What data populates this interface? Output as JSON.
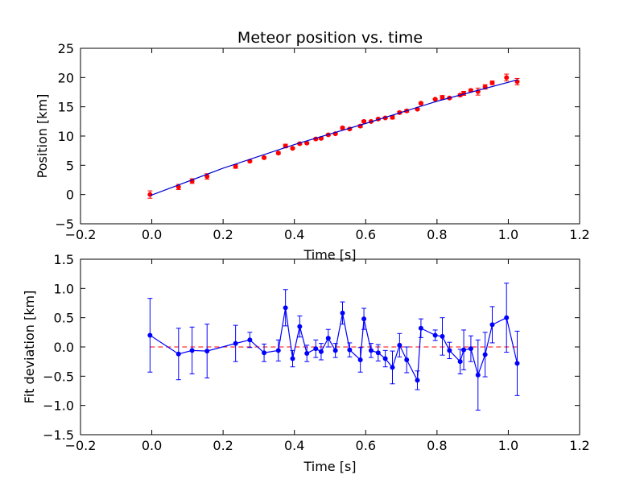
{
  "chart_data": [
    {
      "type": "scatter",
      "title": "Meteor position vs. time",
      "xlabel": "Time [s]",
      "ylabel": "Position [km]",
      "xlim": [
        -0.2,
        1.2
      ],
      "ylim": [
        -5,
        25
      ],
      "xticks": [
        "−0.2",
        "0.0",
        "0.2",
        "0.4",
        "0.6",
        "0.8",
        "1.0",
        "1.2"
      ],
      "yticks": [
        "−5",
        "0",
        "5",
        "10",
        "15",
        "20",
        "25"
      ],
      "grid": false,
      "series": [
        {
          "style": "points-with-errorbars",
          "color": "#ff0000",
          "x": [
            -0.005,
            0.075,
            0.113,
            0.155,
            0.235,
            0.275,
            0.315,
            0.355,
            0.375,
            0.395,
            0.415,
            0.435,
            0.46,
            0.475,
            0.495,
            0.515,
            0.535,
            0.555,
            0.585,
            0.595,
            0.615,
            0.635,
            0.655,
            0.675,
            0.695,
            0.715,
            0.745,
            0.755,
            0.795,
            0.815,
            0.835,
            0.865,
            0.875,
            0.895,
            0.915,
            0.935,
            0.955,
            0.995,
            1.025
          ],
          "y": [
            0.0,
            1.3,
            2.3,
            3.1,
            4.8,
            5.7,
            6.3,
            7.1,
            8.3,
            7.9,
            8.7,
            8.8,
            9.5,
            9.6,
            10.2,
            10.4,
            11.4,
            11.2,
            11.7,
            12.5,
            12.5,
            12.9,
            13.1,
            13.2,
            14.0,
            14.3,
            14.6,
            15.6,
            16.3,
            16.6,
            16.5,
            17.0,
            17.3,
            17.8,
            17.6,
            18.4,
            19.1,
            20.0,
            19.3
          ],
          "yerr": [
            0.63,
            0.44,
            0.4,
            0.46,
            0.31,
            0.13,
            0.15,
            0.18,
            0.31,
            0.14,
            0.18,
            0.14,
            0.15,
            0.14,
            0.15,
            0.12,
            0.19,
            0.12,
            0.21,
            0.18,
            0.12,
            0.14,
            0.14,
            0.28,
            0.2,
            0.22,
            0.16,
            0.16,
            0.09,
            0.32,
            0.14,
            0.21,
            0.34,
            0.22,
            0.6,
            0.38,
            0.31,
            0.59,
            0.55
          ]
        },
        {
          "style": "line",
          "color": "#0000cc",
          "x": [
            -0.005,
            0.2,
            0.4,
            0.6,
            0.8,
            1.025
          ],
          "y": [
            -0.2,
            4.5,
            8.55,
            12.15,
            15.95,
            19.6
          ]
        }
      ]
    },
    {
      "type": "line",
      "title": "",
      "xlabel": "Time [s]",
      "ylabel": "Fit deviation [km]",
      "xlim": [
        -0.2,
        1.2
      ],
      "ylim": [
        -1.5,
        1.5
      ],
      "xticks": [
        "−0.2",
        "0.0",
        "0.2",
        "0.4",
        "0.6",
        "0.8",
        "1.0",
        "1.2"
      ],
      "yticks": [
        "−1.5",
        "−1.0",
        "−0.5",
        "0.0",
        "0.5",
        "1.0",
        "1.5"
      ],
      "grid": false,
      "reference_line": {
        "y": 0,
        "color": "#ff0000",
        "style": "dashed"
      },
      "series": [
        {
          "style": "line-points-with-errorbars",
          "color": "#0000ff",
          "x": [
            -0.005,
            0.075,
            0.113,
            0.155,
            0.235,
            0.275,
            0.315,
            0.355,
            0.375,
            0.395,
            0.415,
            0.435,
            0.46,
            0.475,
            0.495,
            0.515,
            0.535,
            0.555,
            0.585,
            0.595,
            0.615,
            0.635,
            0.655,
            0.675,
            0.695,
            0.715,
            0.745,
            0.755,
            0.795,
            0.815,
            0.835,
            0.865,
            0.875,
            0.895,
            0.915,
            0.935,
            0.955,
            0.995,
            1.025
          ],
          "y": [
            0.2,
            -0.12,
            -0.06,
            -0.07,
            0.06,
            0.12,
            -0.1,
            -0.06,
            0.67,
            -0.2,
            0.35,
            -0.11,
            -0.03,
            -0.08,
            0.15,
            -0.06,
            0.58,
            -0.05,
            -0.22,
            0.48,
            -0.06,
            -0.1,
            -0.2,
            -0.35,
            0.03,
            -0.22,
            -0.57,
            0.32,
            0.2,
            0.18,
            -0.06,
            -0.25,
            -0.05,
            -0.03,
            -0.48,
            -0.13,
            0.38,
            0.5,
            -0.28
          ],
          "yerr": [
            0.63,
            0.44,
            0.4,
            0.46,
            0.31,
            0.13,
            0.15,
            0.18,
            0.31,
            0.14,
            0.18,
            0.14,
            0.15,
            0.14,
            0.15,
            0.12,
            0.19,
            0.12,
            0.21,
            0.18,
            0.12,
            0.14,
            0.14,
            0.28,
            0.2,
            0.22,
            0.16,
            0.16,
            0.09,
            0.32,
            0.14,
            0.21,
            0.34,
            0.22,
            0.6,
            0.38,
            0.31,
            0.59,
            0.55
          ]
        }
      ]
    }
  ]
}
